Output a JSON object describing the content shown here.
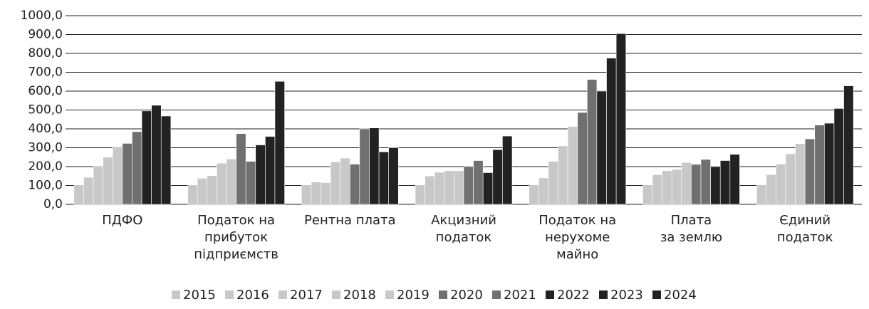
{
  "chart_data": {
    "type": "bar",
    "categories": [
      "ПДФО",
      "Податок на\nприбуток\nпідприємств",
      "Рентна плата",
      "Акцизний\nподаток",
      "Податок на\nнерухоме\nмайно",
      "Плата\nза землю",
      "Єдиний\nподаток"
    ],
    "series": [
      {
        "name": "2015",
        "color": "#c8c8c8",
        "values": [
          100,
          100,
          100,
          100,
          100,
          100,
          100
        ]
      },
      {
        "name": "2016",
        "color": "#c8c8c8",
        "values": [
          143,
          138,
          118,
          150,
          140,
          157,
          157
        ]
      },
      {
        "name": "2017",
        "color": "#c8c8c8",
        "values": [
          200,
          152,
          115,
          170,
          228,
          178,
          213
        ]
      },
      {
        "name": "2018",
        "color": "#c8c8c8",
        "values": [
          250,
          218,
          225,
          178,
          310,
          185,
          268
        ]
      },
      {
        "name": "2019",
        "color": "#c8c8c8",
        "values": [
          305,
          240,
          245,
          178,
          413,
          222,
          322
        ]
      },
      {
        "name": "2020",
        "color": "#707070",
        "values": [
          323,
          375,
          213,
          200,
          487,
          212,
          347
        ]
      },
      {
        "name": "2021",
        "color": "#707070",
        "values": [
          385,
          228,
          400,
          232,
          662,
          238,
          420
        ]
      },
      {
        "name": "2022",
        "color": "#222222",
        "values": [
          495,
          315,
          405,
          168,
          600,
          200,
          430
        ]
      },
      {
        "name": "2023",
        "color": "#222222",
        "values": [
          525,
          360,
          278,
          290,
          775,
          232,
          508
        ]
      },
      {
        "name": "2024",
        "color": "#222222",
        "values": [
          468,
          652,
          300,
          362,
          905,
          265,
          628
        ]
      }
    ],
    "ylim": [
      0,
      1000
    ],
    "yticks": [
      {
        "value": 0,
        "label": "0,0"
      },
      {
        "value": 100,
        "label": "100,0"
      },
      {
        "value": 200,
        "label": "200,0"
      },
      {
        "value": 300,
        "label": "300,0"
      },
      {
        "value": 400,
        "label": "400,0"
      },
      {
        "value": 500,
        "label": "500,0"
      },
      {
        "value": 600,
        "label": "600,0"
      },
      {
        "value": 700,
        "label": "700,0"
      },
      {
        "value": 800,
        "label": "800,0"
      },
      {
        "value": 900,
        "label": "900,0"
      },
      {
        "value": 1000,
        "label": "1000,0"
      }
    ],
    "grid": true,
    "legend": "bottom"
  }
}
